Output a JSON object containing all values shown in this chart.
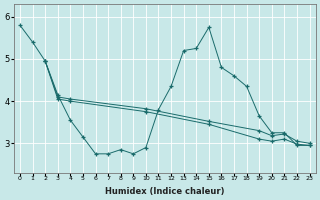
{
  "xlabel": "Humidex (Indice chaleur)",
  "bg_color": "#c8e8e8",
  "line_color": "#1a6b6b",
  "grid_color": "#ffffff",
  "xlim": [
    -0.5,
    23.5
  ],
  "ylim": [
    2.3,
    6.3
  ],
  "yticks": [
    3,
    4,
    5,
    6
  ],
  "xtick_labels": [
    "0",
    "1",
    "2",
    "3",
    "4",
    "5",
    "6",
    "7",
    "8",
    "9",
    "10",
    "11",
    "12",
    "13",
    "14",
    "15",
    "16",
    "17",
    "18",
    "19",
    "20",
    "21",
    "22",
    "23"
  ],
  "lines": [
    {
      "x": [
        0,
        1,
        2,
        3,
        4,
        5,
        6,
        7,
        8,
        9,
        10,
        11,
        12,
        13,
        14,
        15,
        16,
        17,
        18,
        19,
        20,
        21,
        22,
        23
      ],
      "y": [
        5.8,
        5.4,
        4.95,
        4.15,
        3.55,
        3.15,
        2.75,
        2.75,
        2.85,
        2.75,
        2.9,
        3.8,
        4.35,
        5.2,
        5.25,
        5.75,
        4.8,
        4.6,
        4.35,
        3.65,
        3.25,
        3.25,
        2.95,
        2.95
      ]
    },
    {
      "x": [
        2,
        3,
        4,
        10,
        15,
        19,
        20,
        21,
        22,
        23
      ],
      "y": [
        4.95,
        4.1,
        4.05,
        3.82,
        3.52,
        3.3,
        3.18,
        3.22,
        3.05,
        3.0
      ]
    },
    {
      "x": [
        2,
        3,
        4,
        10,
        15,
        19,
        20,
        21,
        22,
        23
      ],
      "y": [
        4.95,
        4.05,
        4.0,
        3.75,
        3.45,
        3.1,
        3.05,
        3.1,
        2.98,
        2.95
      ]
    }
  ]
}
